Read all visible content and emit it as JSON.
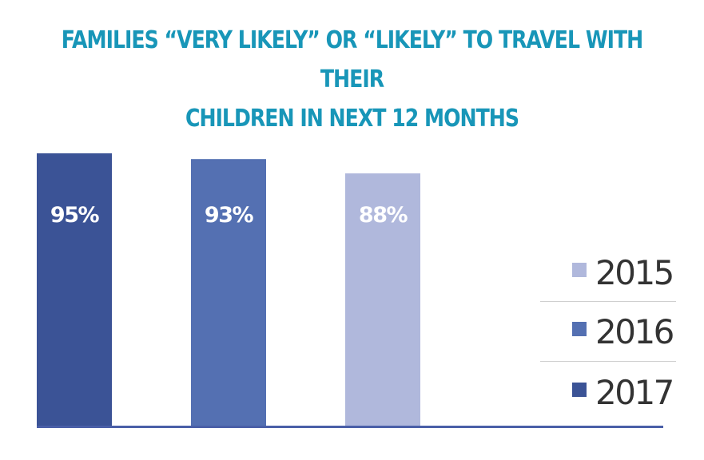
{
  "chart_data": {
    "type": "bar",
    "title_lines": [
      "FAMILIES “VERY LIKELY” OR “LIKELY” TO TRAVEL WITH THEIR",
      "CHILDREN IN NEXT 12 MONTHS"
    ],
    "series": [
      {
        "name": "2017",
        "value": 95,
        "label": "95%",
        "color": "#3b5396"
      },
      {
        "name": "2016",
        "value": 93,
        "label": "93%",
        "color": "#5470b2"
      },
      {
        "name": "2015",
        "value": 88,
        "label": "88%",
        "color": "#b0b8dc"
      }
    ],
    "legend_order": [
      "2015",
      "2016",
      "2017"
    ],
    "legend_placement": "right",
    "ylim": [
      0,
      95
    ],
    "grid": false,
    "title_color": "#1896b8",
    "legend_text_color": "#333333",
    "baseline_color": "#4a5fa8",
    "separator_color": "#cfcfcf"
  }
}
